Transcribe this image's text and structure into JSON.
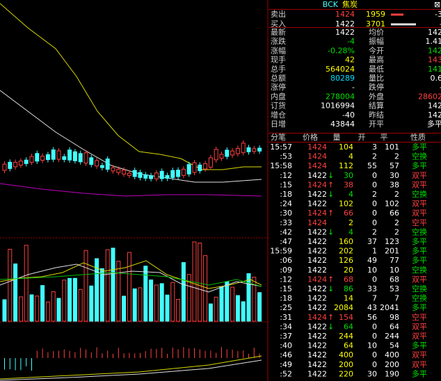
{
  "header": {
    "symbol": "BCK",
    "name": "焦炭",
    "close": "⊠"
  },
  "orders": [
    {
      "label": "卖出",
      "price": "1424",
      "qty": "1959",
      "bar_color": "#ff4040",
      "change": "-3"
    },
    {
      "label": "买入",
      "price": "1422",
      "qty": "3701",
      "bar_color": "#e0e0e0",
      "change": "-"
    }
  ],
  "quote": {
    "rows": [
      {
        "label": "最新",
        "value": "1422",
        "color": "#ffffff",
        "label2": "均价",
        "value2": "142",
        "color2": "#ffffff"
      },
      {
        "label": "涨跌",
        "value": "-4",
        "color": "#00e000",
        "label2": "振幅",
        "value2": "1.41",
        "color2": "#ffffff"
      },
      {
        "label": "涨幅",
        "value": "-0.28%",
        "color": "#00e000",
        "label2": "今开",
        "value2": "142",
        "color2": "#00e000"
      },
      {
        "label": "现手",
        "value": "42",
        "color": "#ffff00",
        "label2": "最高",
        "value2": "143",
        "color2": "#ff4040"
      },
      {
        "label": "总手",
        "value": "564024",
        "color": "#ffff00",
        "label2": "最低",
        "value2": "141",
        "color2": "#00e000"
      },
      {
        "label": "总额",
        "value": "80289",
        "color": "#00e0ff",
        "label2": "量比",
        "value2": "0.6",
        "color2": "#ffffff"
      },
      {
        "label": "涨停",
        "value": "-",
        "color": "#ffffff",
        "label2": "跌停",
        "value2": "-",
        "color2": "#ffffff"
      },
      {
        "label": "内盘",
        "value": "278004",
        "color": "#00e000",
        "label2": "外盘",
        "value2": "28602",
        "color2": "#ff4040"
      },
      {
        "label": "订货",
        "value": "1016994",
        "color": "#ffffff",
        "label2": "结算",
        "value2": "142",
        "color2": "#ffffff"
      },
      {
        "label": "增仓",
        "value": "-40",
        "color": "#ffffff",
        "label2": "昨结",
        "value2": "142",
        "color2": "#ffffff"
      },
      {
        "label": "日增",
        "value": "43844",
        "color": "#ffffff",
        "label2": "开平",
        "value2": "多平",
        "color2": "#ffffff"
      }
    ]
  },
  "ticks": {
    "columns": [
      "分笔",
      "价格",
      "量",
      "开",
      "平",
      "性质"
    ],
    "rows": [
      {
        "time": "15:57",
        "price": "1424",
        "arrow": "",
        "vol": "104",
        "open": "3",
        "close": "101",
        "nature": "多平",
        "pc": "#ff4040",
        "nc": "#00e000"
      },
      {
        "time": ":53",
        "price": "1424",
        "arrow": "",
        "vol": "4",
        "open": "2",
        "close": "2",
        "nature": "空换",
        "pc": "#ff4040",
        "nc": "#00e000"
      },
      {
        "time": "15:58",
        "price": "1424",
        "arrow": "",
        "vol": "112",
        "open": "55",
        "close": "57",
        "nature": "多平",
        "pc": "#ff4040",
        "nc": "#00e000"
      },
      {
        "time": ":12",
        "price": "1422",
        "arrow": "↓",
        "vol": "30",
        "open": "0",
        "close": "30",
        "nature": "双平",
        "pc": "#ffffff",
        "nc": "#ff4040"
      },
      {
        "time": ":15",
        "price": "1424",
        "arrow": "↑",
        "vol": "38",
        "open": "0",
        "close": "38",
        "nature": "双平",
        "pc": "#ff4040",
        "nc": "#ff4040"
      },
      {
        "time": ":18",
        "price": "1422",
        "arrow": "↓",
        "vol": "4",
        "open": "2",
        "close": "2",
        "nature": "空换",
        "pc": "#ffffff",
        "nc": "#00e000"
      },
      {
        "time": ":24",
        "price": "1422",
        "arrow": "",
        "vol": "102",
        "open": "0",
        "close": "102",
        "nature": "双平",
        "pc": "#ffffff",
        "nc": "#ff4040"
      },
      {
        "time": ":30",
        "price": "1424",
        "arrow": "↑",
        "vol": "66",
        "open": "0",
        "close": "66",
        "nature": "双平",
        "pc": "#ff4040",
        "nc": "#ff4040"
      },
      {
        "time": ":33",
        "price": "1424",
        "arrow": "",
        "vol": "2",
        "open": "0",
        "close": "2",
        "nature": "空平",
        "pc": "#ff4040",
        "nc": "#ff4040"
      },
      {
        "time": ":42",
        "price": "1422",
        "arrow": "↓",
        "vol": "4",
        "open": "2",
        "close": "2",
        "nature": "空换",
        "pc": "#ffffff",
        "nc": "#00e000"
      },
      {
        "time": ":47",
        "price": "1422",
        "arrow": "",
        "vol": "160",
        "open": "37",
        "close": "123",
        "nature": "多平",
        "pc": "#ffffff",
        "nc": "#00e000"
      },
      {
        "time": "15:59",
        "price": "1422",
        "arrow": "",
        "vol": "202",
        "open": "1",
        "close": "201",
        "nature": "多平",
        "pc": "#ffffff",
        "nc": "#00e000"
      },
      {
        "time": ":06",
        "price": "1422",
        "arrow": "",
        "vol": "126",
        "open": "49",
        "close": "77",
        "nature": "多平",
        "pc": "#ffffff",
        "nc": "#00e000"
      },
      {
        "time": ":09",
        "price": "1422",
        "arrow": "",
        "vol": "20",
        "open": "10",
        "close": "10",
        "nature": "空换",
        "pc": "#ffffff",
        "nc": "#00e000"
      },
      {
        "time": ":12",
        "price": "1424",
        "arrow": "↑",
        "vol": "68",
        "open": "0",
        "close": "68",
        "nature": "双平",
        "pc": "#ff4040",
        "nc": "#ff4040"
      },
      {
        "time": ":15",
        "price": "1422",
        "arrow": "↓",
        "vol": "86",
        "open": "33",
        "close": "53",
        "nature": "空换",
        "pc": "#ffffff",
        "nc": "#00e000"
      },
      {
        "time": ":18",
        "price": "1422",
        "arrow": "",
        "vol": "14",
        "open": "7",
        "close": "7",
        "nature": "空换",
        "pc": "#ffffff",
        "nc": "#00e000"
      },
      {
        "time": ":25",
        "price": "1422",
        "arrow": "",
        "vol": "2084",
        "open": "43",
        "close": "2041",
        "nature": "多平",
        "pc": "#ffffff",
        "nc": "#00e000"
      },
      {
        "time": ":31",
        "price": "1424",
        "arrow": "↑",
        "vol": "154",
        "open": "56",
        "close": "98",
        "nature": "空平",
        "pc": "#ff4040",
        "nc": "#ff4040"
      },
      {
        "time": ":34",
        "price": "1422",
        "arrow": "↓",
        "vol": "64",
        "open": "0",
        "close": "64",
        "nature": "双平",
        "pc": "#ffffff",
        "nc": "#ff4040"
      },
      {
        "time": ":37",
        "price": "1422",
        "arrow": "",
        "vol": "244",
        "open": "0",
        "close": "244",
        "nature": "双平",
        "pc": "#ffffff",
        "nc": "#ff4040"
      },
      {
        "time": ":40",
        "price": "1422",
        "arrow": "",
        "vol": "64",
        "open": "10",
        "close": "54",
        "nature": "多平",
        "pc": "#ffffff",
        "nc": "#00e000"
      },
      {
        "time": ":46",
        "price": "1422",
        "arrow": "",
        "vol": "400",
        "open": "0",
        "close": "400",
        "nature": "双平",
        "pc": "#ffffff",
        "nc": "#ff4040"
      },
      {
        "time": ":49",
        "price": "1422",
        "arrow": "",
        "vol": "200",
        "open": "0",
        "close": "200",
        "nature": "双平",
        "pc": "#ffffff",
        "nc": "#ff4040"
      },
      {
        "time": ":52",
        "price": "1422",
        "arrow": "",
        "vol": "220",
        "open": "30",
        "close": "190",
        "nature": "多平",
        "pc": "#ffffff",
        "nc": "#00e000"
      }
    ]
  }
}
